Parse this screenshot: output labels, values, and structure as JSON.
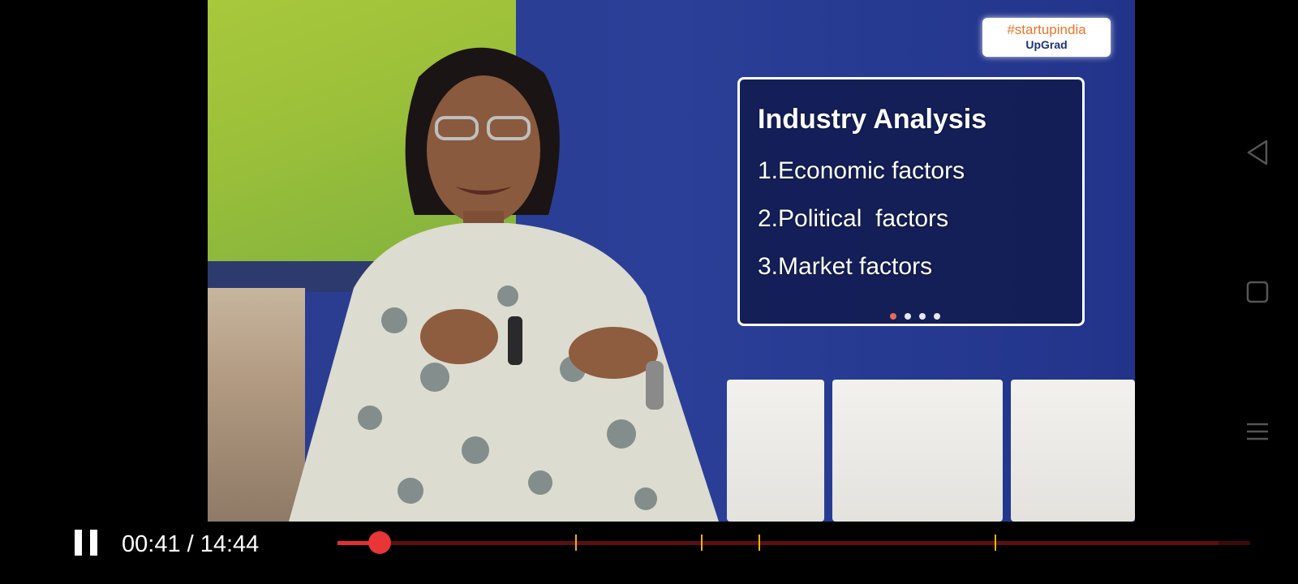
{
  "video": {
    "logo_badge": {
      "line1": "#startupindia",
      "line2": "UpGrad"
    },
    "slide": {
      "title": "Industry Analysis",
      "items": [
        "1.Economic factors",
        "2.Political  factors",
        "3.Market factors"
      ],
      "dots_total": 4,
      "dots_active": 1
    }
  },
  "player": {
    "state": "playing",
    "time_label": "00:41 / 14:44",
    "current_seconds": 41,
    "duration_seconds": 884,
    "played_fraction": 0.046,
    "buffered_fraction": 0.965,
    "chapter_marks_fraction": [
      0.26,
      0.398,
      0.461,
      0.72
    ]
  },
  "system_nav": {
    "buttons": [
      "back-icon",
      "home-icon",
      "recents-icon"
    ]
  },
  "colors": {
    "seek_played": "#e23030",
    "seek_thumb": "#e83535",
    "chapter_mark": "#f0b400",
    "slide_background": "#121c52",
    "logo_text_orange": "#e9742b",
    "logo_text_navy": "#1f3278"
  }
}
